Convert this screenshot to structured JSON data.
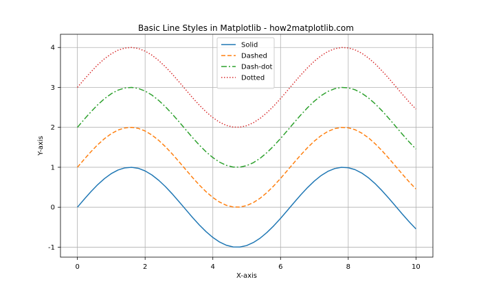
{
  "chart_data": {
    "type": "line",
    "title": "Basic Line Styles in Matplotlib - how2matplotlib.com",
    "xlabel": "X-axis",
    "ylabel": "Y-axis",
    "xlim": [
      -0.5,
      10.5
    ],
    "ylim": [
      -1.25,
      4.33
    ],
    "xticks": [
      0,
      2,
      4,
      6,
      8,
      10
    ],
    "yticks": [
      -1,
      0,
      1,
      2,
      3,
      4
    ],
    "grid": true,
    "legend_position": "top-center",
    "x": [
      0,
      0.2,
      0.4,
      0.6,
      0.8,
      1,
      1.2,
      1.4,
      1.6,
      1.8,
      2,
      2.2,
      2.4,
      2.6,
      2.8,
      3,
      3.2,
      3.4,
      3.6,
      3.8,
      4,
      4.2,
      4.4,
      4.6,
      4.8,
      5,
      5.2,
      5.4,
      5.6,
      5.8,
      6,
      6.2,
      6.4,
      6.6,
      6.8,
      7,
      7.2,
      7.4,
      7.6,
      7.8,
      8,
      8.2,
      8.4,
      8.6,
      8.8,
      9,
      9.2,
      9.4,
      9.6,
      9.8,
      10
    ],
    "series": [
      {
        "name": "Solid",
        "color": "#1f77b4",
        "dash": "solid",
        "values": [
          0,
          0.199,
          0.389,
          0.565,
          0.717,
          0.841,
          0.932,
          0.985,
          1.0,
          0.974,
          0.909,
          0.808,
          0.675,
          0.516,
          0.335,
          0.141,
          -0.058,
          -0.256,
          -0.443,
          -0.612,
          -0.757,
          -0.872,
          -0.952,
          -0.994,
          -0.996,
          -0.959,
          -0.883,
          -0.773,
          -0.631,
          -0.465,
          -0.279,
          -0.083,
          0.117,
          0.312,
          0.494,
          0.657,
          0.794,
          0.899,
          0.968,
          0.999,
          0.989,
          0.941,
          0.855,
          0.735,
          0.585,
          0.412,
          0.223,
          0.025,
          -0.174,
          -0.366,
          -0.544
        ]
      },
      {
        "name": "Dashed",
        "color": "#ff7f0e",
        "dash": "dashed",
        "values": [
          1,
          1.199,
          1.389,
          1.565,
          1.717,
          1.841,
          1.932,
          1.985,
          2.0,
          1.974,
          1.909,
          1.808,
          1.675,
          1.516,
          1.335,
          1.141,
          0.942,
          0.744,
          0.557,
          0.388,
          0.243,
          0.128,
          0.048,
          0.006,
          0.004,
          0.041,
          0.117,
          0.227,
          0.369,
          0.535,
          0.721,
          0.917,
          1.117,
          1.312,
          1.494,
          1.657,
          1.794,
          1.899,
          1.968,
          1.999,
          1.989,
          1.941,
          1.855,
          1.735,
          1.585,
          1.412,
          1.223,
          1.025,
          0.826,
          0.634,
          0.456
        ]
      },
      {
        "name": "Dash-dot",
        "color": "#2ca02c",
        "dash": "dashdot",
        "values": [
          2,
          2.199,
          2.389,
          2.565,
          2.717,
          2.841,
          2.932,
          2.985,
          3.0,
          2.974,
          2.909,
          2.808,
          2.675,
          2.516,
          2.335,
          2.141,
          1.942,
          1.744,
          1.557,
          1.388,
          1.243,
          1.128,
          1.048,
          1.006,
          1.004,
          1.041,
          1.117,
          1.227,
          1.369,
          1.535,
          1.721,
          1.917,
          2.117,
          2.312,
          2.494,
          2.657,
          2.794,
          2.899,
          2.968,
          2.999,
          2.989,
          2.941,
          2.855,
          2.735,
          2.585,
          2.412,
          2.223,
          2.025,
          1.826,
          1.634,
          1.456
        ]
      },
      {
        "name": "Dotted",
        "color": "#d62728",
        "dash": "dotted",
        "values": [
          3,
          3.199,
          3.389,
          3.565,
          3.717,
          3.841,
          3.932,
          3.985,
          4.0,
          3.974,
          3.909,
          3.808,
          3.675,
          3.516,
          3.335,
          3.141,
          2.942,
          2.744,
          2.557,
          2.388,
          2.243,
          2.128,
          2.048,
          2.006,
          2.004,
          2.041,
          2.117,
          2.227,
          2.369,
          2.535,
          2.721,
          2.917,
          3.117,
          3.312,
          3.494,
          3.657,
          3.794,
          3.899,
          3.968,
          3.999,
          3.989,
          3.941,
          3.855,
          3.735,
          3.585,
          3.412,
          3.223,
          3.025,
          2.826,
          2.634,
          2.456
        ]
      }
    ]
  }
}
